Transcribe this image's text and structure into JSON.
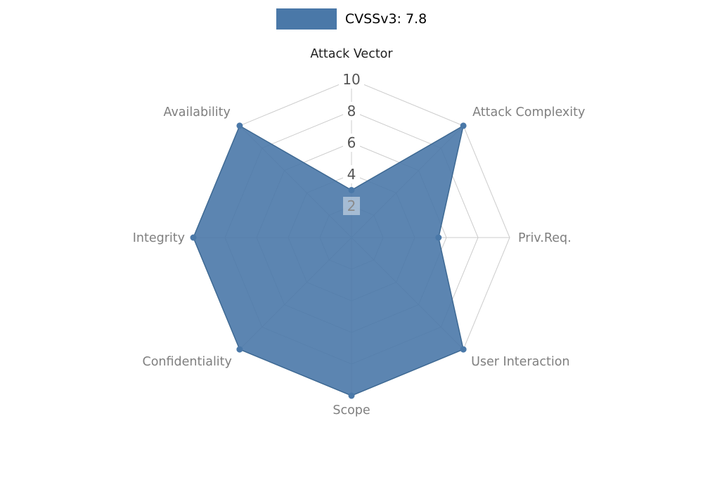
{
  "chart_data": {
    "type": "radar",
    "title": "",
    "legend_label": "CVSSv3: 7.8",
    "legend_position": "top",
    "categories": [
      "Attack Vector",
      "Attack Complexity",
      "Priv.Req.",
      "User Interaction",
      "Scope",
      "Confidentiality",
      "Integrity",
      "Availability"
    ],
    "values": [
      3,
      10,
      5.5,
      10,
      10,
      10,
      10,
      10
    ],
    "ticks": [
      10,
      8,
      6,
      4,
      2
    ],
    "scale_min": 0,
    "scale_max": 10,
    "grid": true,
    "colors": {
      "series": "#4a78a8",
      "series_edge": "#3e6993",
      "grid": "#cccccc",
      "axis_label": "#7f7f7f",
      "axis_label_primary": "#1f1f1f",
      "tick_label": "#555555",
      "tick_label_inner": "#8a8a8a",
      "tick_box": "#ffffff"
    }
  }
}
